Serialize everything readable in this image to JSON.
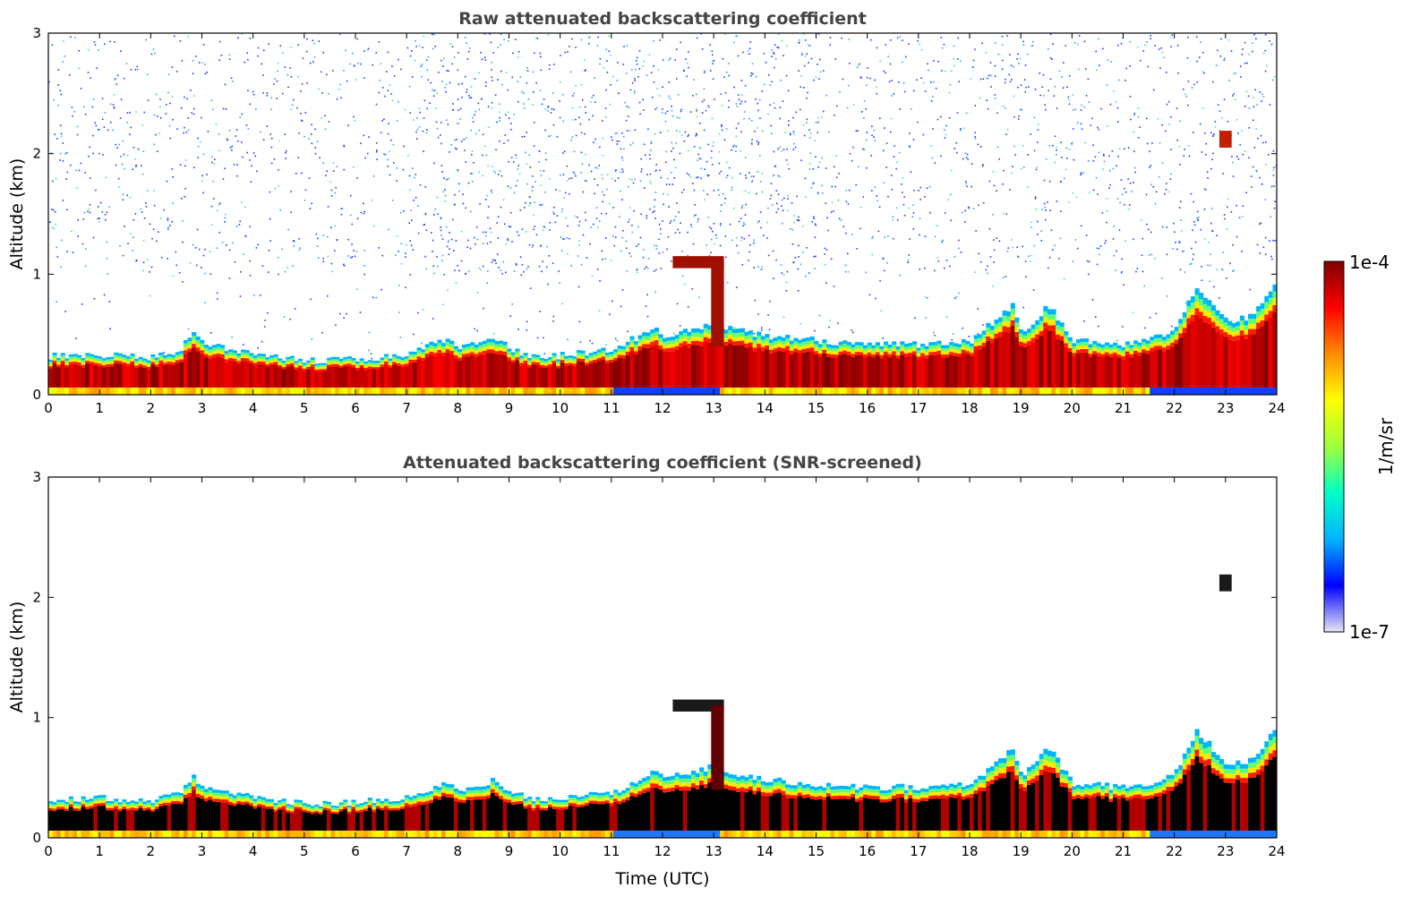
{
  "chart_data": [
    {
      "type": "heatmap",
      "title": "Raw attenuated backscattering coefficient",
      "xlabel": "",
      "ylabel": "Altitude (km)",
      "xlim": [
        0,
        24
      ],
      "ylim": [
        0,
        3
      ],
      "x_ticks": [
        "0",
        "1",
        "2",
        "3",
        "4",
        "5",
        "6",
        "7",
        "8",
        "9",
        "10",
        "11",
        "12",
        "13",
        "14",
        "15",
        "16",
        "17",
        "18",
        "19",
        "20",
        "21",
        "22",
        "23",
        "24"
      ],
      "y_ticks": [
        "0",
        "1",
        "2",
        "3"
      ],
      "screened": false,
      "boundary_layer_top_km": [
        [
          0,
          0.32
        ],
        [
          1,
          0.33
        ],
        [
          2,
          0.31
        ],
        [
          2.5,
          0.36
        ],
        [
          2.8,
          0.5
        ],
        [
          3,
          0.42
        ],
        [
          4,
          0.33
        ],
        [
          5,
          0.28
        ],
        [
          6,
          0.3
        ],
        [
          7,
          0.33
        ],
        [
          7.8,
          0.48
        ],
        [
          8,
          0.4
        ],
        [
          8.7,
          0.48
        ],
        [
          9,
          0.38
        ],
        [
          9.6,
          0.3
        ],
        [
          10,
          0.33
        ],
        [
          11,
          0.38
        ],
        [
          11.8,
          0.55
        ],
        [
          12,
          0.48
        ],
        [
          12.5,
          0.55
        ],
        [
          13,
          0.6
        ],
        [
          13.3,
          0.55
        ],
        [
          14,
          0.48
        ],
        [
          15,
          0.45
        ],
        [
          16,
          0.42
        ],
        [
          17,
          0.42
        ],
        [
          18,
          0.45
        ],
        [
          18.8,
          0.75
        ],
        [
          19,
          0.5
        ],
        [
          19.5,
          0.75
        ],
        [
          20,
          0.45
        ],
        [
          21,
          0.42
        ],
        [
          21.5,
          0.45
        ],
        [
          22,
          0.55
        ],
        [
          22.4,
          0.9
        ],
        [
          23,
          0.6
        ],
        [
          23.5,
          0.65
        ],
        [
          23.9,
          0.9
        ]
      ],
      "features": [
        {
          "name": "elevated cloud layer",
          "x_start": 12.2,
          "x_end": 13.2,
          "altitude_km": 1.1
        },
        {
          "name": "isolated cloud",
          "x": 23.0,
          "altitude_km": 2.12
        }
      ]
    },
    {
      "type": "heatmap",
      "title": "Attenuated backscattering coefficient (SNR-screened)",
      "xlabel": "Time (UTC)",
      "ylabel": "Altitude (km)",
      "xlim": [
        0,
        24
      ],
      "ylim": [
        0,
        3
      ],
      "x_ticks": [
        "0",
        "1",
        "2",
        "3",
        "4",
        "5",
        "6",
        "7",
        "8",
        "9",
        "10",
        "11",
        "12",
        "13",
        "14",
        "15",
        "16",
        "17",
        "18",
        "19",
        "20",
        "21",
        "22",
        "23",
        "24"
      ],
      "y_ticks": [
        "0",
        "1",
        "2",
        "3"
      ],
      "screened": true
    }
  ],
  "colorbar": {
    "label": "1/m/sr",
    "max_label": "1e-4",
    "min_label": "1e-7",
    "colormap": [
      "#e6e6f5",
      "#0000ff",
      "#00b4ff",
      "#00ffc8",
      "#a0ff3c",
      "#ffff00",
      "#ff8c00",
      "#ff0000",
      "#800000"
    ]
  }
}
